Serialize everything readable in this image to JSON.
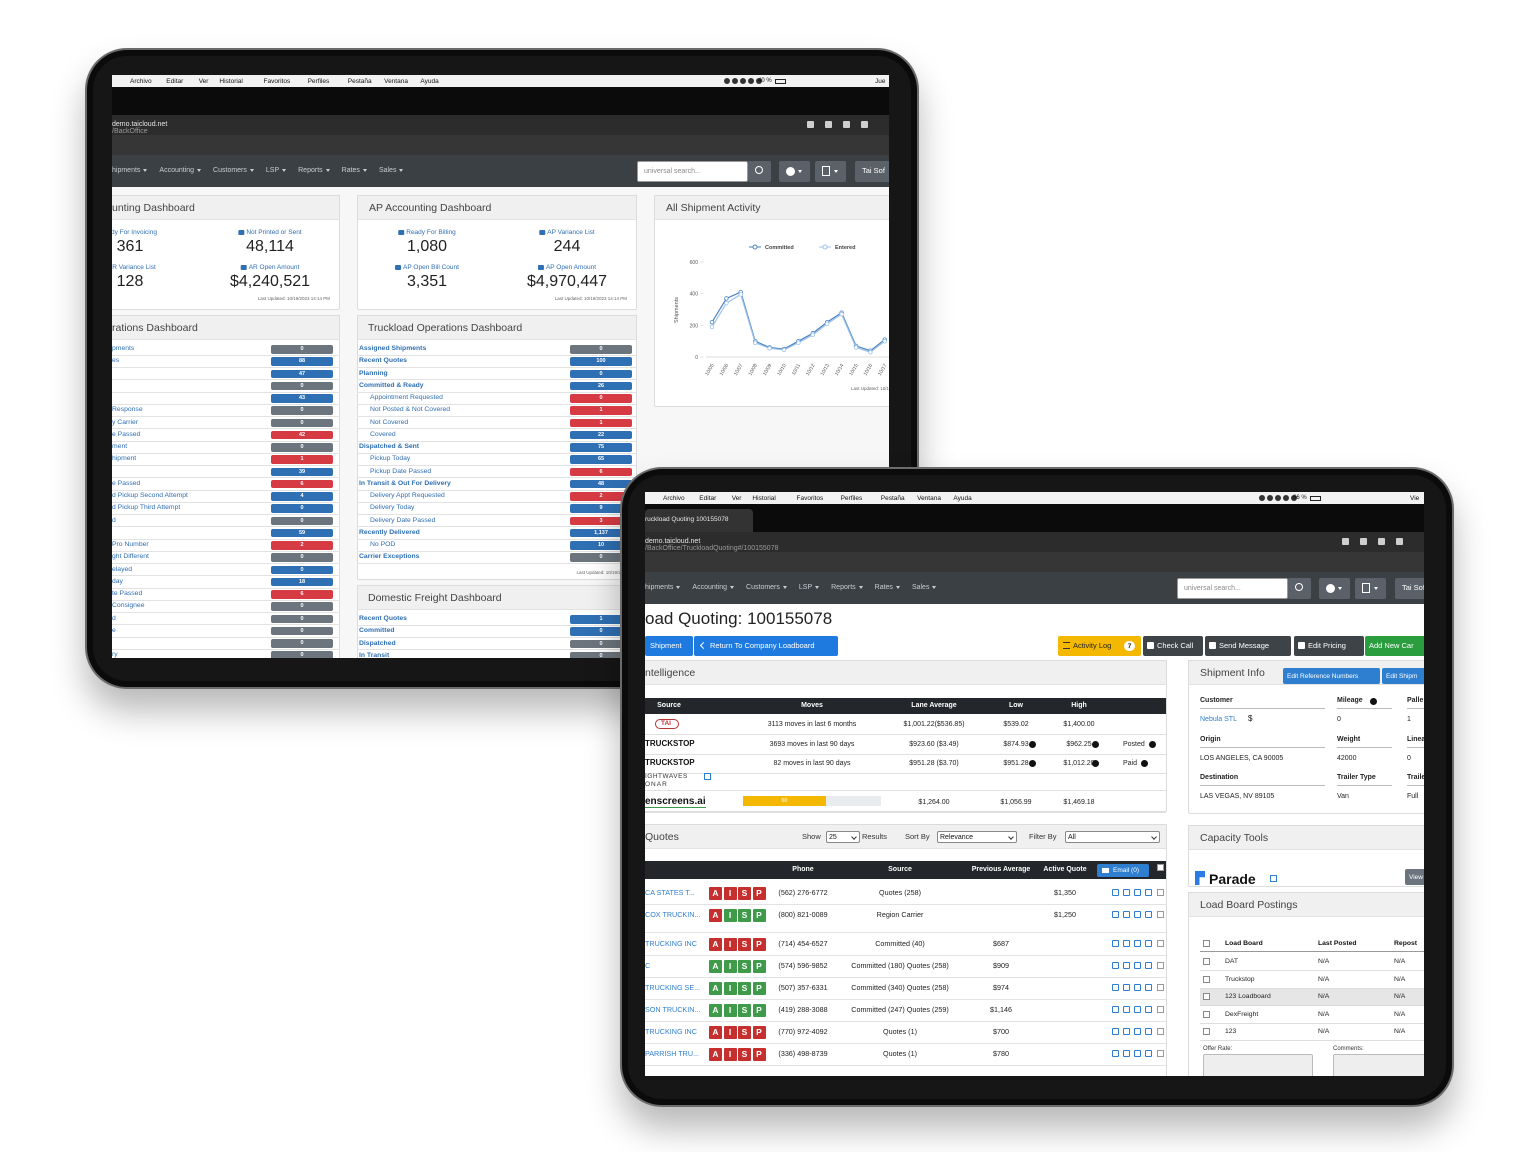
{
  "back_tablet": {
    "menu_bar": {
      "items": [
        "Archivo",
        "Editar",
        "Ver",
        "Historial",
        "Favoritos",
        "Perfiles",
        "Pestaña",
        "Ventana",
        "Ayuda"
      ],
      "battery": "40 %",
      "day": "Jue"
    },
    "address": {
      "host": "demo.taicloud.net",
      "path": "/BackOffice"
    },
    "nav": {
      "items": [
        "hipments",
        "Accounting",
        "Customers",
        "LSP",
        "Reports",
        "Rates",
        "Sales"
      ],
      "search_placeholder": "universal search...",
      "user": "Tai Sof"
    },
    "ar_dashboard": {
      "title": "unting Dashboard",
      "stats": [
        {
          "label": "dy For Invoicing",
          "value": "361"
        },
        {
          "label": "Not Printed or Sent",
          "value": "48,114"
        },
        {
          "label": "R Variance List",
          "value": "128"
        },
        {
          "label": "AR Open Amount",
          "value": "$4,240,521"
        }
      ],
      "updated": "Last Updated: 10/19/2023 14:14 PM"
    },
    "ap_dashboard": {
      "title": "AP Accounting Dashboard",
      "stats": [
        {
          "label": "Ready For Billing",
          "value": "1,080"
        },
        {
          "label": "AP Variance List",
          "value": "244"
        },
        {
          "label": "AP Open Bill Count",
          "value": "3,351"
        },
        {
          "label": "AP Open Amount",
          "value": "$4,970,447"
        }
      ],
      "updated": "Last Updated: 10/19/2023 14:14 PM"
    },
    "shipment_activity": {
      "title": "All Shipment Activity",
      "chart": {
        "type": "line",
        "y_label": "Shipments",
        "ylim": [
          0,
          600
        ],
        "yticks": [
          0,
          200,
          400,
          600
        ],
        "categories": [
          "10/05",
          "10/06",
          "10/07",
          "10/08",
          "10/09",
          "10/10",
          "10/11",
          "10/12",
          "10/13",
          "10/14",
          "10/15",
          "10/16",
          "10/17"
        ],
        "series": [
          {
            "name": "Committed",
            "color": "#4a82c3",
            "values": [
              220,
              370,
              410,
              100,
              60,
              50,
              100,
              150,
              220,
              280,
              70,
              40,
              110
            ]
          },
          {
            "name": "Entered",
            "color": "#9cc2ea",
            "values": [
              190,
              340,
              395,
              90,
              55,
              45,
              90,
              140,
              210,
              270,
              60,
              30,
              100
            ]
          }
        ]
      },
      "updated": "Last Updated: 10/1"
    },
    "palette": {
      "gray": "#6c757d",
      "blue": "#2f6fb3",
      "red": "#d63a43"
    },
    "operations_dashboard": {
      "title": "rations Dashboard",
      "rows": [
        {
          "label": "pments",
          "count": 0,
          "color": "gray"
        },
        {
          "label": "es",
          "count": 88,
          "color": "blue"
        },
        {
          "label": null,
          "count": 47,
          "color": "blue"
        },
        {
          "label": null,
          "count": 0,
          "color": "gray"
        },
        {
          "label": null,
          "count": 43,
          "color": "blue"
        },
        {
          "label": "Response",
          "count": 0,
          "color": "gray"
        },
        {
          "label": "y Carrier",
          "count": 0,
          "color": "gray"
        },
        {
          "label": "e Passed",
          "count": 42,
          "color": "red"
        },
        {
          "label": "ment",
          "count": 0,
          "color": "gray"
        },
        {
          "label": "hipment",
          "count": 1,
          "color": "red"
        },
        {
          "label": null,
          "count": 39,
          "color": "blue"
        },
        {
          "label": "e Passed",
          "count": 6,
          "color": "red"
        },
        {
          "label": "d Pickup Second Attempt",
          "count": 4,
          "color": "blue"
        },
        {
          "label": "d Pickup Third Attempt",
          "count": 0,
          "color": "blue"
        },
        {
          "label": "d",
          "count": 0,
          "color": "gray"
        },
        {
          "label": null,
          "count": 59,
          "color": "blue"
        },
        {
          "label": "Pro Number",
          "count": 2,
          "color": "red"
        },
        {
          "label": "ght Different",
          "count": 0,
          "color": "gray"
        },
        {
          "label": "elayed",
          "count": 0,
          "color": "blue"
        },
        {
          "label": "day",
          "count": 18,
          "color": "blue"
        },
        {
          "label": "te Passed",
          "count": 6,
          "color": "red"
        },
        {
          "label": "Consignee",
          "count": 0,
          "color": "gray"
        },
        {
          "label": "d",
          "count": 0,
          "color": "gray"
        },
        {
          "label": "e",
          "count": 0,
          "color": "gray"
        },
        {
          "label": null,
          "count": 0,
          "color": "gray"
        },
        {
          "label": "ry",
          "count": 0,
          "color": "gray"
        }
      ]
    },
    "truckload_dashboard": {
      "title": "Truckload Operations Dashboard",
      "rows": [
        {
          "label": "Assigned Shipments",
          "count": 0,
          "color": "gray",
          "sub": false
        },
        {
          "label": "Recent Quotes",
          "count": 100,
          "color": "blue",
          "sub": false
        },
        {
          "label": "Planning",
          "count": 0,
          "color": "blue",
          "sub": false
        },
        {
          "label": "Committed & Ready",
          "count": 26,
          "color": "blue",
          "sub": false
        },
        {
          "label": "Appointment Requested",
          "count": 0,
          "color": "red",
          "sub": true
        },
        {
          "label": "Not Posted & Not Covered",
          "count": 1,
          "color": "red",
          "sub": true
        },
        {
          "label": "Not Covered",
          "count": 1,
          "color": "red",
          "sub": true
        },
        {
          "label": "Covered",
          "count": 22,
          "color": "blue",
          "sub": true
        },
        {
          "label": "Dispatched & Sent",
          "count": 75,
          "color": "blue",
          "sub": false
        },
        {
          "label": "Pickup Today",
          "count": 65,
          "color": "blue",
          "sub": true
        },
        {
          "label": "Pickup Date Passed",
          "count": 6,
          "color": "red",
          "sub": true
        },
        {
          "label": "In Transit & Out For Delivery",
          "count": 48,
          "color": "blue",
          "sub": false
        },
        {
          "label": "Delivery Appt Requested",
          "count": 2,
          "color": "red",
          "sub": true
        },
        {
          "label": "Delivery Today",
          "count": 9,
          "color": "blue",
          "sub": true
        },
        {
          "label": "Delivery Date Passed",
          "count": 3,
          "color": "red",
          "sub": true
        },
        {
          "label": "Recently Delivered",
          "count": "1,137",
          "color": "blue",
          "sub": false
        },
        {
          "label": "No POD",
          "count": 10,
          "color": "blue",
          "sub": true
        },
        {
          "label": "Carrier Exceptions",
          "count": 0,
          "color": "gray",
          "sub": false
        }
      ],
      "updated": "Last Updated: 10/19/2023 1"
    },
    "domestic_dashboard": {
      "title": "Domestic Freight Dashboard",
      "rows": [
        {
          "label": "Recent Quotes",
          "count": 1,
          "color": "blue",
          "sub": false
        },
        {
          "label": "Committed",
          "count": 0,
          "color": "blue",
          "sub": false
        },
        {
          "label": "Dispatched",
          "count": 0,
          "color": "gray",
          "sub": false
        },
        {
          "label": "In Transit",
          "count": 0,
          "color": "gray",
          "sub": false
        }
      ]
    }
  },
  "front_tablet": {
    "menu_bar": {
      "items": [
        "Archivo",
        "Editar",
        "Ver",
        "Historial",
        "Favoritos",
        "Perfiles",
        "Pestaña",
        "Ventana",
        "Ayuda"
      ],
      "battery": "66 %",
      "day": "Vie"
    },
    "tab": "ruckload Quoting 100155078",
    "address": {
      "host": "demo.taicloud.net",
      "path": "/BackOffice/TruckloadQuoting#/100155078"
    },
    "nav": {
      "items": [
        "hipments",
        "Accounting",
        "Customers",
        "LSP",
        "Reports",
        "Rates",
        "Sales"
      ],
      "search_placeholder": "universal search...",
      "user": "Tai Sof"
    },
    "heading": "oad Quoting: 100155078",
    "left_buttons": [
      "Shipment",
      "Return To Company Loadboard"
    ],
    "activity_log": {
      "label": "Activity Log",
      "count": 7
    },
    "action_buttons": [
      "Check Call",
      "Send Message",
      "Edit Pricing",
      "Add New Car"
    ],
    "intelligence": {
      "title": "ntelligence",
      "headers": [
        "Source",
        "Moves",
        "Lane Average",
        "Low",
        "High"
      ],
      "rows": [
        {
          "source": "TAI",
          "moves": "3113 moves in last 6 months",
          "lane": "$1,001.22($536.85)",
          "low": "$539.02",
          "high": "$1,400.00"
        },
        {
          "source": "TRUCKSTOP",
          "moves": "3693 moves in last 90 days",
          "lane": "$923.60 ($3.49)",
          "low": "$874.93",
          "high": "$962.25",
          "status": "Posted"
        },
        {
          "source": "TRUCKSTOP",
          "moves": "82 moves in last 90 days",
          "lane": "$951.28 ($3.70)",
          "low": "$951.28",
          "high": "$1,012.20",
          "status": "Paid"
        },
        {
          "source": "IGHTWAVES",
          "source_line2": "ONAR"
        },
        {
          "source": "enscreens.ai",
          "progress": 60,
          "lane": "$1,264.00",
          "low": "$1,056.99",
          "high": "$1,469.18"
        }
      ]
    },
    "quotes": {
      "title": "Quotes",
      "show_label": "Show",
      "show_value": "25",
      "results_label": "Results",
      "sort_label": "Sort By",
      "sort_value": "Relevance",
      "filter_label": "Filter By",
      "filter_value": "All",
      "headers": [
        "Phone",
        "Source",
        "Previous Average",
        "Active Quote"
      ],
      "email_button": "Email (0)",
      "aisp_letters": [
        "A",
        "I",
        "S",
        "P"
      ],
      "aisp_palette": {
        "red": "#c5302f",
        "green": "#3f9a49"
      },
      "rows": [
        {
          "carrier": "CA STATES T...",
          "aisp": [
            "red",
            "red",
            "red",
            "red"
          ],
          "phone": "(562) 276-6772",
          "source": "Quotes (258)",
          "active": "$1,350"
        },
        {
          "carrier": "COX TRUCKIN...",
          "aisp": [
            "red",
            "green",
            "green",
            "green"
          ],
          "phone": "(800) 821-0089",
          "source": "Region Carrier",
          "active": "$1,250"
        },
        {
          "carrier": "TRUCKING INC",
          "aisp": [
            "red",
            "red",
            "red",
            "red"
          ],
          "phone": "(714) 454-6527",
          "source": "Committed (40)",
          "previous": "$687"
        },
        {
          "carrier": "C",
          "aisp": [
            "green",
            "green",
            "green",
            "green"
          ],
          "phone": "(574) 596-9852",
          "source": "Committed (180) Quotes (258)",
          "previous": "$909"
        },
        {
          "carrier": "TRUCKING SE...",
          "aisp": [
            "green",
            "green",
            "green",
            "green"
          ],
          "phone": "(507) 357-6331",
          "source": "Committed (340) Quotes (258)",
          "previous": "$974"
        },
        {
          "carrier": "SON TRUCKIN...",
          "aisp": [
            "green",
            "green",
            "green",
            "green"
          ],
          "phone": "(419) 288-3088",
          "source": "Committed (247) Quotes (259)",
          "previous": "$1,146"
        },
        {
          "carrier": "TRUCKING INC",
          "aisp": [
            "red",
            "red",
            "red",
            "red"
          ],
          "phone": "(770) 972-4092",
          "source": "Quotes (1)",
          "previous": "$700"
        },
        {
          "carrier": "PARRISH TRU...",
          "aisp": [
            "red",
            "red",
            "red",
            "red"
          ],
          "phone": "(336) 498-8739",
          "source": "Quotes (1)",
          "previous": "$780"
        }
      ]
    },
    "shipment_info": {
      "title": "Shipment Info",
      "buttons": [
        "Edit Reference Numbers",
        "Edit Shipm"
      ],
      "fields": [
        {
          "label": "Customer",
          "value": "Nebula STL",
          "extra": "$"
        },
        {
          "label": "Mileage",
          "value": "0"
        },
        {
          "label": "Palle",
          "value": "1"
        },
        {
          "label": "Origin",
          "value": "LOS ANGELES, CA 90005"
        },
        {
          "label": "Weight",
          "value": "42000"
        },
        {
          "label": "Linea",
          "value": "0"
        },
        {
          "label": "Destination",
          "value": "LAS VEGAS, NV 89105"
        },
        {
          "label": "Trailer Type",
          "value": "Van"
        },
        {
          "label": "Traile",
          "value": "Full"
        }
      ]
    },
    "capacity_tools": {
      "title": "Capacity Tools",
      "provider": "Parade",
      "button": "View"
    },
    "load_board": {
      "title": "Load Board Postings",
      "headers": [
        "Load Board",
        "Last Posted",
        "Repost"
      ],
      "rows": [
        [
          "DAT",
          "N/A",
          "N/A"
        ],
        [
          "Truckstop",
          "N/A",
          "N/A"
        ],
        [
          "123 Loadboard",
          "N/A",
          "N/A"
        ],
        [
          "DexFreight",
          "N/A",
          "N/A"
        ],
        [
          "123",
          "N/A",
          "N/A"
        ]
      ],
      "offer_label": "Offer Rate:",
      "comments_label": "Comments:"
    }
  }
}
